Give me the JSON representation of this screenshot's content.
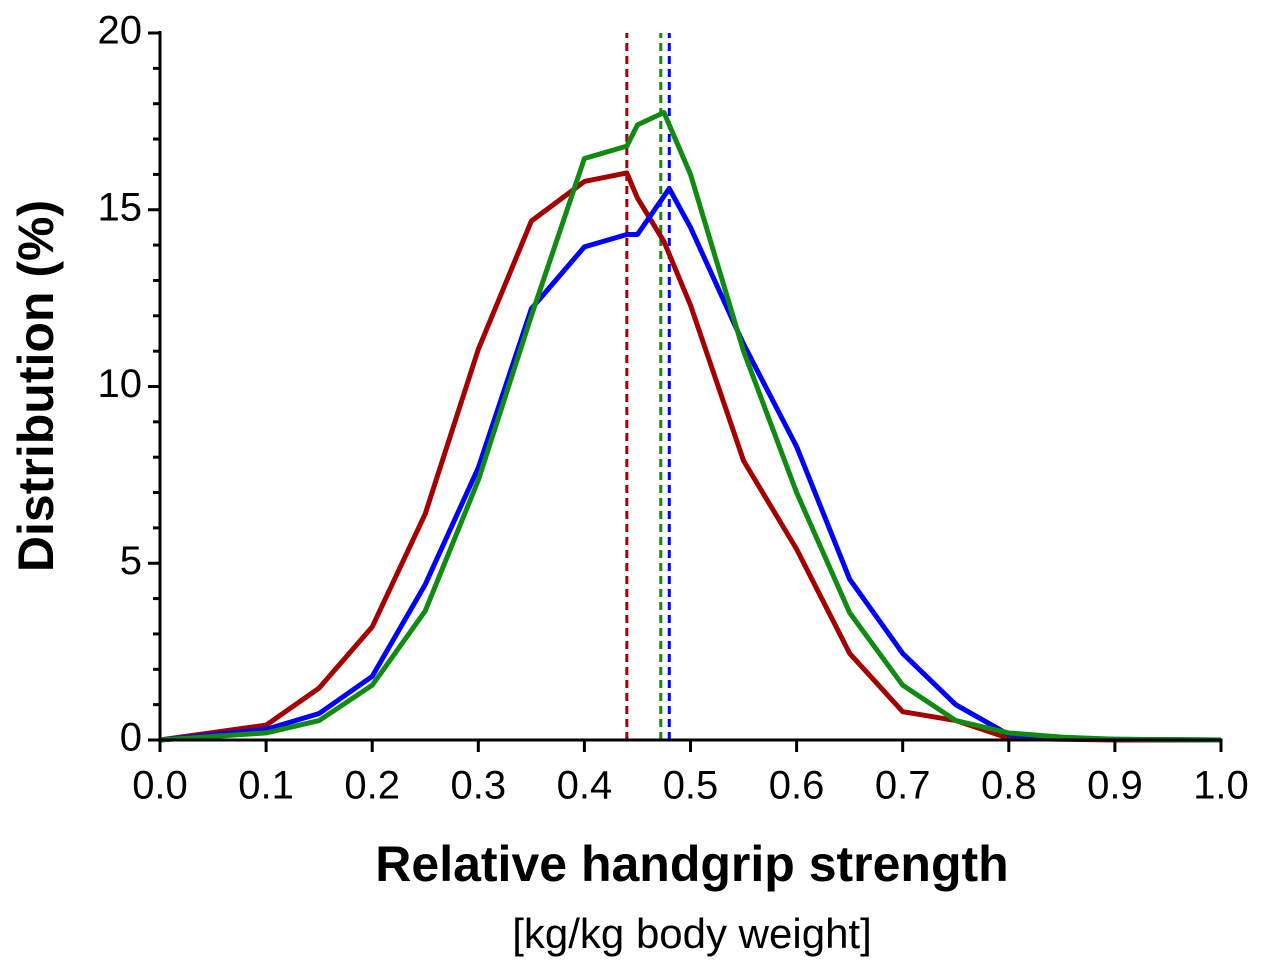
{
  "chart_data": {
    "type": "line",
    "xlabel": "Relative handgrip strength",
    "xlabel_sub": "[kg/kg body weight]",
    "ylabel": "Distribution (%)",
    "xlim": [
      0,
      1
    ],
    "ylim": [
      0,
      20
    ],
    "xticks": [
      {
        "value": 0,
        "label": "0.0"
      },
      0.1,
      0.2,
      0.3,
      0.4,
      0.5,
      0.6,
      0.7,
      0.8,
      0.9,
      {
        "value": 1,
        "label": "1.0"
      }
    ],
    "yticks": [
      0,
      5,
      10,
      15,
      20
    ],
    "yminorticks": [
      1,
      2,
      3,
      4,
      6,
      7,
      8,
      9,
      11,
      12,
      13,
      14,
      16,
      17,
      18,
      19
    ],
    "series": [
      {
        "color": "#a50000",
        "x": [
          0,
          0.1,
          0.15,
          0.2,
          0.25,
          0.3,
          0.35,
          0.4,
          0.44,
          0.45,
          0.475,
          0.5,
          0.55,
          0.6,
          0.65,
          0.7,
          0.75,
          0.8,
          0.85,
          0.9,
          1.0
        ],
        "values": [
          0,
          0.42,
          1.47,
          3.2,
          6.4,
          11.05,
          14.68,
          15.8,
          16.04,
          15.33,
          14.1,
          12.3,
          7.9,
          5.4,
          2.45,
          0.8,
          0.55,
          0.05,
          0.02,
          0,
          0
        ]
      },
      {
        "color": "#0000ff",
        "x": [
          0,
          0.1,
          0.15,
          0.2,
          0.25,
          0.3,
          0.35,
          0.4,
          0.44,
          0.45,
          0.48,
          0.5,
          0.55,
          0.6,
          0.65,
          0.7,
          0.75,
          0.8,
          0.85,
          0.9,
          1.0
        ],
        "values": [
          0,
          0.3,
          0.75,
          1.8,
          4.4,
          7.7,
          12.2,
          13.95,
          14.3,
          14.3,
          15.6,
          14.5,
          11.2,
          8.3,
          4.55,
          2.45,
          1.0,
          0.15,
          0.05,
          0.02,
          0
        ]
      },
      {
        "color": "#108a10",
        "x": [
          0,
          0.1,
          0.15,
          0.2,
          0.25,
          0.3,
          0.35,
          0.4,
          0.44,
          0.45,
          0.475,
          0.5,
          0.55,
          0.6,
          0.65,
          0.7,
          0.75,
          0.8,
          0.85,
          0.9,
          1.0
        ],
        "values": [
          0,
          0.2,
          0.55,
          1.55,
          3.65,
          7.35,
          12.0,
          16.45,
          16.8,
          17.4,
          17.75,
          16.0,
          11.0,
          7.0,
          3.6,
          1.55,
          0.55,
          0.2,
          0.08,
          0.02,
          0
        ]
      }
    ],
    "vlines": [
      {
        "x": 0.44,
        "color": "#a50000"
      },
      {
        "x": 0.472,
        "color": "#108a10"
      },
      {
        "x": 0.48,
        "color": "#0000ff"
      }
    ]
  }
}
